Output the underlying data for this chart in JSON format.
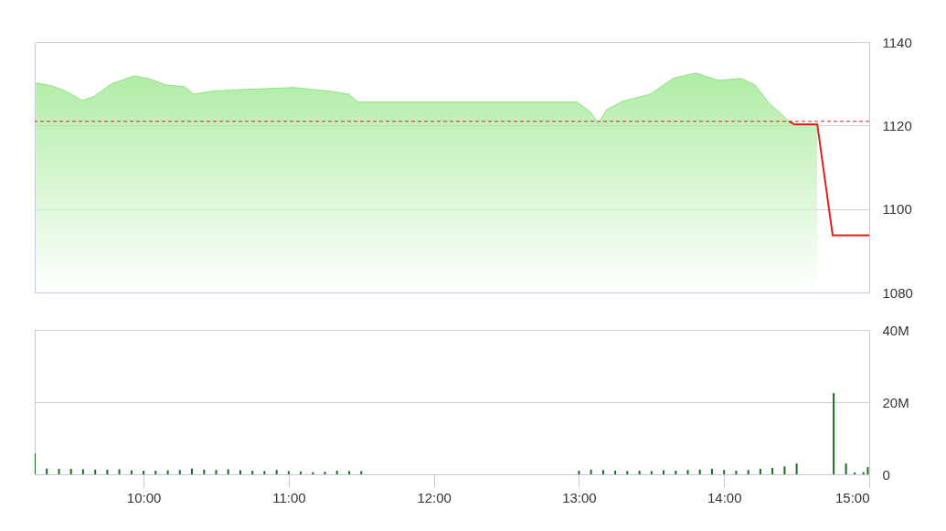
{
  "chart_data": [
    {
      "type": "area",
      "xlim": [
        9.25,
        15
      ],
      "ylim": [
        1080,
        1140
      ],
      "yticks": [
        1080,
        1100,
        1120,
        1140
      ],
      "tick_labels": "y",
      "grid": "y",
      "series": [
        {
          "type": "area",
          "color": "#8ee57f",
          "x": [
            9.258,
            9.371,
            9.465,
            9.579,
            9.654,
            9.78,
            9.937,
            10.031,
            10.157,
            10.283,
            10.346,
            10.472,
            10.66,
            11.038,
            11.289,
            11.415,
            11.478,
            12.987,
            13.082,
            13.132,
            13.189,
            13.302,
            13.491,
            13.648,
            13.805,
            13.962,
            14.119,
            14.214,
            14.308,
            14.403,
            14.447,
            14.484,
            14.642
          ],
          "values": [
            1130.2,
            1129.5,
            1128.2,
            1126.0,
            1126.9,
            1130.0,
            1131.9,
            1131.3,
            1129.7,
            1129.3,
            1127.5,
            1128.2,
            1128.6,
            1129.1,
            1128.2,
            1127.5,
            1125.6,
            1125.6,
            1123.2,
            1120.3,
            1123.8,
            1125.8,
            1127.5,
            1131.3,
            1132.6,
            1130.8,
            1131.3,
            1129.7,
            1125.4,
            1122.5,
            1121.0,
            1120.3,
            1120.3
          ]
        },
        {
          "type": "line",
          "color": "#e02020",
          "x": [
            14.447,
            14.484,
            14.642,
            14.748,
            15.0
          ],
          "values": [
            1121.0,
            1120.3,
            1120.3,
            1093.7,
            1093.7
          ]
        }
      ],
      "ref_lines": [
        {
          "axis": "y",
          "value": 1121,
          "color": "#e02020",
          "line_style": "dashed"
        }
      ]
    },
    {
      "type": "bar",
      "xlim": [
        9.25,
        15
      ],
      "ylim": [
        0,
        40
      ],
      "yticks": [
        0,
        {
          "value": 20,
          "label": "20M"
        },
        {
          "value": 40,
          "label": "40M"
        }
      ],
      "xticks": [
        {
          "value": 10,
          "label": "10:00"
        },
        {
          "value": 11,
          "label": "11:00"
        },
        {
          "value": 12,
          "label": "12:00"
        },
        {
          "value": 13,
          "label": "13:00"
        },
        {
          "value": 14,
          "label": "14:00"
        },
        {
          "value": 15,
          "label": "15:00"
        }
      ],
      "grid": "y",
      "series": [
        {
          "color": "#1e6b1e",
          "x": [
            9.25,
            9.333,
            9.417,
            9.5,
            9.583,
            9.667,
            9.75,
            9.833,
            9.917,
            10.0,
            10.083,
            10.167,
            10.25,
            10.333,
            10.417,
            10.5,
            10.583,
            10.667,
            10.75,
            10.833,
            10.917,
            11.0,
            11.083,
            11.167,
            11.25,
            11.333,
            11.417,
            11.5,
            13.0,
            13.083,
            13.167,
            13.25,
            13.333,
            13.417,
            13.5,
            13.583,
            13.667,
            13.75,
            13.833,
            13.917,
            14.0,
            14.083,
            14.167,
            14.25,
            14.333,
            14.417,
            14.5,
            14.755,
            14.84,
            14.9,
            14.96,
            14.99
          ],
          "values": [
            5.8,
            1.6,
            1.5,
            1.5,
            1.4,
            1.3,
            1.3,
            1.4,
            1.1,
            1.0,
            1.0,
            1.1,
            1.2,
            1.6,
            1.3,
            1.2,
            1.4,
            1.1,
            1.0,
            0.9,
            1.2,
            0.9,
            0.8,
            0.6,
            0.7,
            1.0,
            0.9,
            0.9,
            1.0,
            1.3,
            1.2,
            1.0,
            0.9,
            1.0,
            0.9,
            1.1,
            1.0,
            1.2,
            1.3,
            1.5,
            1.2,
            1.0,
            1.2,
            1.5,
            1.8,
            2.2,
            3.0,
            22.5,
            3.0,
            0.5,
            0.6,
            2.0
          ]
        }
      ]
    }
  ]
}
